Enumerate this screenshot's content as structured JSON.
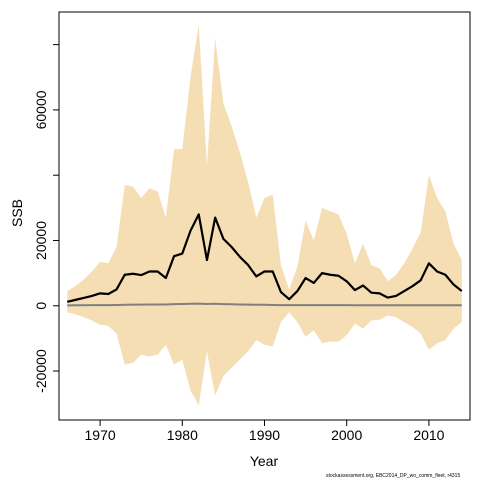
{
  "footer": "stockassessment.org, EBC2014_DP_wo_comm_fleet, r4315",
  "chart_data": {
    "type": "area",
    "xlabel": "Year",
    "ylabel": "SSB",
    "xlim": [
      1965,
      2015
    ],
    "ylim": [
      -35000,
      90000
    ],
    "xticks": [
      1970,
      1980,
      1990,
      2000,
      2010
    ],
    "yticks": [
      -20000,
      0,
      20000,
      60000
    ],
    "ytick_labels": [
      "-20000",
      "0",
      "20000",
      "60000"
    ],
    "colors": {
      "band": "#f5deb3",
      "estimate": "#000000",
      "zero_line": "#808080"
    },
    "x": [
      1966,
      1967,
      1968,
      1969,
      1970,
      1971,
      1972,
      1973,
      1974,
      1975,
      1976,
      1977,
      1978,
      1979,
      1980,
      1981,
      1982,
      1983,
      1984,
      1985,
      1986,
      1987,
      1988,
      1989,
      1990,
      1991,
      1992,
      1993,
      1994,
      1995,
      1996,
      1997,
      1998,
      1999,
      2000,
      2001,
      2002,
      2003,
      2004,
      2005,
      2006,
      2007,
      2008,
      2009,
      2010,
      2011,
      2012,
      2013,
      2014
    ],
    "series": [
      {
        "values": [
          1200,
          1800,
          2400,
          3000,
          3800,
          3600,
          5000,
          9500,
          9800,
          9400,
          10500,
          10500,
          8500,
          15200,
          16000,
          23000,
          28000,
          14000,
          27000,
          20500,
          18000,
          15000,
          12500,
          9000,
          10500,
          10500,
          4200,
          2000,
          4500,
          8500,
          7000,
          10000,
          9500,
          9200,
          7500,
          4800,
          6200,
          4000,
          3800,
          2500,
          3000,
          4500,
          6000,
          7800,
          13000,
          10500,
          9500,
          6500,
          4500
        ],
        "upper": [
          4500,
          6000,
          8000,
          10500,
          13500,
          13000,
          18000,
          37000,
          36500,
          33000,
          36000,
          35000,
          27000,
          48000,
          48000,
          70000,
          86000,
          43000,
          82000,
          62000,
          55000,
          47000,
          38000,
          27000,
          33000,
          34000,
          12500,
          5000,
          12000,
          26000,
          20000,
          30000,
          29000,
          28000,
          22000,
          13000,
          19000,
          12500,
          11500,
          7500,
          9500,
          13000,
          17500,
          22500,
          40000,
          33000,
          29000,
          19000,
          14000
        ],
        "lower": [
          -2000,
          -2600,
          -3500,
          -4500,
          -5800,
          -6200,
          -8500,
          -18000,
          -17500,
          -15000,
          -15500,
          -15000,
          -12000,
          -18000,
          -16500,
          -26000,
          -30500,
          -14000,
          -27500,
          -21500,
          -19000,
          -16500,
          -14000,
          -10500,
          -12000,
          -12500,
          -5000,
          -2000,
          -5000,
          -9500,
          -7500,
          -11500,
          -11000,
          -11000,
          -9000,
          -5500,
          -7000,
          -4500,
          -4300,
          -3000,
          -3500,
          -5000,
          -6500,
          -8500,
          -13500,
          -11500,
          -10500,
          -7000,
          -5000
        ],
        "reference": [
          100,
          150,
          150,
          200,
          200,
          200,
          250,
          300,
          350,
          350,
          400,
          400,
          400,
          500,
          550,
          600,
          650,
          550,
          600,
          500,
          450,
          400,
          350,
          300,
          300,
          250,
          200,
          200,
          200,
          200,
          200,
          200,
          200,
          200,
          200,
          150,
          150,
          150,
          150,
          150,
          150,
          150,
          150,
          150,
          150,
          150,
          150,
          150,
          150
        ]
      }
    ]
  }
}
